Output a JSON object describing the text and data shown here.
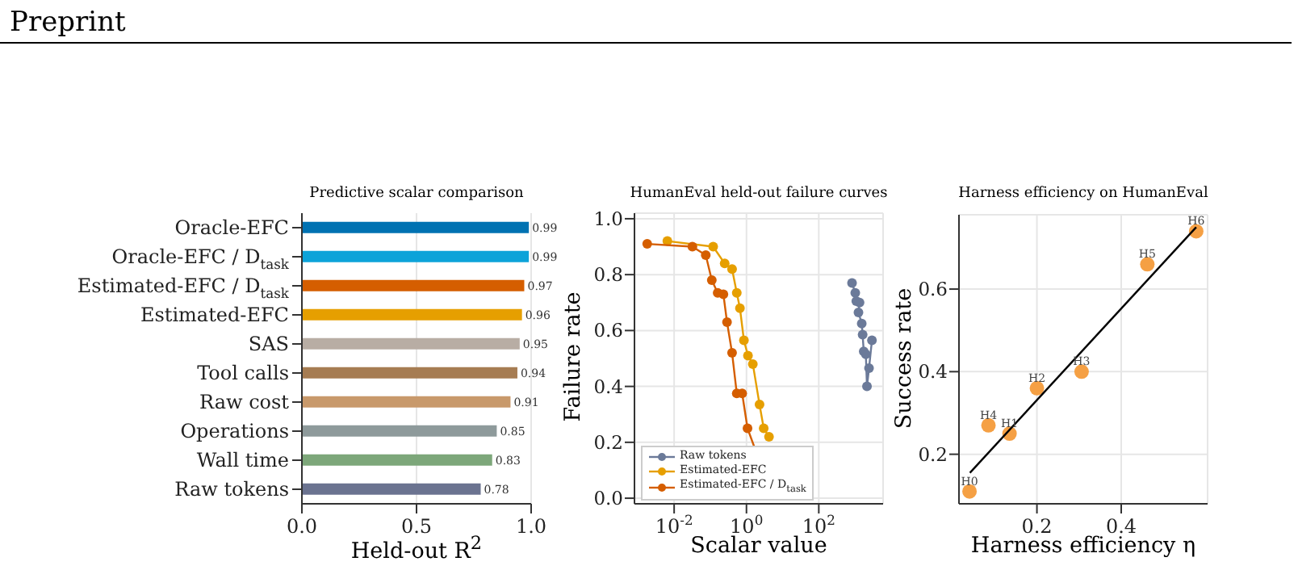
{
  "chart_data": [
    {
      "type": "bar",
      "orientation": "horizontal",
      "title": "Predictive scalar comparison",
      "xlabel": "Held-out R$^{2}$",
      "annotations": [
        "Preprint"
      ],
      "categories": [
        "Oracle-EFC",
        "Oracle-EFC / D$_{task}$",
        "Estimated-EFC / D$_{task}$",
        "Estimated-EFC",
        "SAS",
        "Tool calls",
        "Raw cost",
        "Operations",
        "Wall time",
        "Raw tokens"
      ],
      "values": [
        0.99,
        0.99,
        0.97,
        0.96,
        0.95,
        0.94,
        0.91,
        0.85,
        0.83,
        0.78
      ],
      "colors": [
        "#0072b2",
        "#0ca3d9",
        "#d55e00",
        "#e69f00",
        "#b8ada4",
        "#a67c52",
        "#c8996b",
        "#8e9a9b",
        "#7da77a",
        "#6b7390"
      ],
      "data_labels": true,
      "xlim": [
        0,
        1.0
      ],
      "xticks": [
        {
          "value": 0,
          "label": "0.0"
        },
        0.5,
        {
          "value": 1,
          "label": "1.0"
        }
      ],
      "grid": "x"
    },
    {
      "type": "line",
      "title": "HumanEval held-out failure curves",
      "xlabel": "Scalar value",
      "ylabel": "Failure rate",
      "log": "x",
      "marker": "circle",
      "grid": true,
      "legend": "bottom left",
      "xlim": [
        0.0008,
        6000
      ],
      "xticks": [
        {
          "value": 0.01,
          "label": "10$^{-2}$"
        },
        {
          "value": 1,
          "label": "10$^{0}$"
        },
        {
          "value": 100,
          "label": "10$^{2}$"
        }
      ],
      "ylim": [
        -0.02,
        1.02
      ],
      "yticks": [
        {
          "value": 0,
          "label": "0.0"
        },
        0.2,
        0.4,
        0.6,
        0.8,
        {
          "value": 1,
          "label": "1.0"
        }
      ],
      "series": [
        {
          "name": "Raw tokens",
          "color": "#6b7a99",
          "x": [
            830,
            1020,
            1090,
            1340,
            1250,
            1540,
            1630,
            1750,
            2000,
            2150,
            2450,
            2950
          ],
          "values": [
            0.77,
            0.735,
            0.705,
            0.7,
            0.665,
            0.625,
            0.585,
            0.525,
            0.515,
            0.4,
            0.465,
            0.565
          ]
        },
        {
          "name": "Estimated-EFC",
          "color": "#e69f00",
          "x": [
            0.0065,
            0.12,
            0.25,
            0.4,
            0.54,
            0.66,
            0.85,
            1.1,
            1.5,
            2.3,
            3.0,
            4.2
          ],
          "values": [
            0.92,
            0.9,
            0.84,
            0.82,
            0.735,
            0.68,
            0.565,
            0.51,
            0.48,
            0.335,
            0.25,
            0.22
          ]
        },
        {
          "name": "Estimated-EFC / D$_{task}$",
          "color": "#d55e00",
          "x": [
            0.0018,
            0.032,
            0.075,
            0.11,
            0.16,
            0.23,
            0.29,
            0.4,
            0.54,
            0.76,
            1.07,
            1.8
          ],
          "values": [
            0.91,
            0.9,
            0.87,
            0.78,
            0.735,
            0.73,
            0.63,
            0.52,
            0.375,
            0.375,
            0.25,
            0.17
          ]
        }
      ]
    },
    {
      "type": "scatter",
      "title": "Harness efficiency on HumanEval",
      "xlabel": "Harness efficiency η",
      "ylabel": "Success rate",
      "marker": "circle",
      "grid": true,
      "xlim": [
        0.015,
        0.605
      ],
      "xticks": [
        0.2,
        0.4
      ],
      "ylim": [
        0.08,
        0.78
      ],
      "yticks": [
        0.2,
        0.4,
        0.6
      ],
      "series": [
        {
          "color": "#f5a044",
          "x": [
            0.04,
            0.135,
            0.2,
            0.306,
            0.085,
            0.462,
            0.578
          ],
          "values": [
            0.11,
            0.25,
            0.36,
            0.4,
            0.27,
            0.66,
            0.74
          ]
        },
        {
          "type": "line",
          "color": "#000000",
          "marker": "none",
          "x": [
            0.041,
            0.578
          ],
          "values": [
            0.155,
            0.75
          ]
        }
      ],
      "annotations": [
        {
          "text": "H0",
          "x": 0.04,
          "y": 0.11
        },
        {
          "text": "H1",
          "x": 0.135,
          "y": 0.25
        },
        {
          "text": "H2",
          "x": 0.2,
          "y": 0.36
        },
        {
          "text": "H3",
          "x": 0.306,
          "y": 0.4
        },
        {
          "text": "H4",
          "x": 0.085,
          "y": 0.27
        },
        {
          "text": "H5",
          "x": 0.462,
          "y": 0.66
        },
        {
          "text": "H6",
          "x": 0.578,
          "y": 0.74
        }
      ]
    }
  ]
}
